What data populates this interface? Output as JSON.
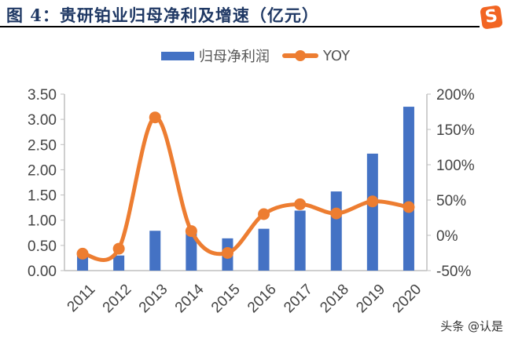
{
  "header": {
    "title": "图 4：贵研铂业归母净利及增速（亿元）",
    "logo_color": "#f26522"
  },
  "watermark": "头条 @认是",
  "chart_data": {
    "type": "bar+line",
    "title": "图 4：贵研铂业归母净利及增速（亿元）",
    "categories": [
      "2011",
      "2012",
      "2013",
      "2014",
      "2015",
      "2016",
      "2017",
      "2018",
      "2019",
      "2020"
    ],
    "series": [
      {
        "name": "归母净利润",
        "type": "bar",
        "axis": "left",
        "color": "#4472c4",
        "values": [
          0.35,
          0.3,
          0.79,
          0.8,
          0.64,
          0.83,
          1.19,
          1.57,
          2.32,
          3.25
        ]
      },
      {
        "name": "YOY",
        "type": "line",
        "axis": "right",
        "color": "#ed7d31",
        "smooth": true,
        "values": [
          -26,
          -19,
          167,
          6,
          -25,
          30,
          44,
          31,
          48,
          40
        ]
      }
    ],
    "left_axis": {
      "range": [
        0,
        3.5
      ],
      "ticks": [
        "0.00",
        "0.50",
        "1.00",
        "1.50",
        "2.00",
        "2.50",
        "3.00",
        "3.50"
      ]
    },
    "right_axis": {
      "range": [
        -50,
        200
      ],
      "unit": "%",
      "ticks": [
        "-50%",
        "0%",
        "50%",
        "100%",
        "150%",
        "200%"
      ]
    },
    "legend": "top-center",
    "grid": false
  }
}
